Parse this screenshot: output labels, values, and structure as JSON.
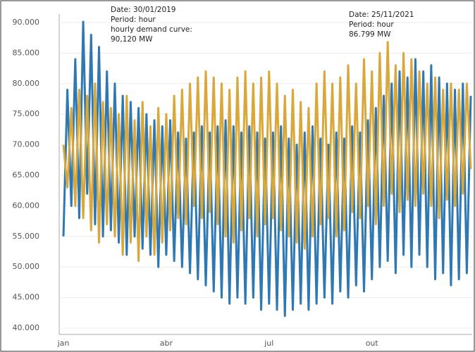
{
  "chart_data": {
    "type": "line",
    "annotations": [
      {
        "lines": [
          "Date: 30/01/2019",
          "Period: hour",
          "hourly demand curve:",
          "90,120 MW"
        ]
      },
      {
        "lines": [
          "Date: 25/11/2021",
          "Period: hour",
          "86.799 MW"
        ]
      }
    ],
    "categories": [
      "jan",
      null,
      null,
      null,
      null,
      null,
      null,
      null,
      null,
      null,
      null,
      null,
      null,
      null,
      null,
      null,
      null,
      null,
      null,
      null,
      null,
      null,
      null,
      null,
      null,
      null,
      "abr",
      null,
      null,
      null,
      null,
      null,
      null,
      null,
      null,
      null,
      null,
      null,
      null,
      null,
      null,
      null,
      null,
      null,
      null,
      null,
      null,
      null,
      null,
      null,
      null,
      null,
      "jul",
      null,
      null,
      null,
      null,
      null,
      null,
      null,
      null,
      null,
      null,
      null,
      null,
      null,
      null,
      null,
      null,
      null,
      null,
      null,
      null,
      null,
      null,
      null,
      null,
      null,
      "out",
      null,
      null,
      null,
      null,
      null,
      null,
      null,
      null,
      null,
      null,
      null,
      null,
      null,
      null,
      null,
      null,
      null,
      null,
      null,
      null,
      null,
      null,
      null,
      null,
      null
    ],
    "series": [
      {
        "color": "#2f78b1",
        "values": [
          55000,
          79000,
          60000,
          84000,
          58000,
          90120,
          62000,
          88000,
          57000,
          86000,
          55000,
          82000,
          56000,
          80000,
          54000,
          78000,
          52000,
          77000,
          55000,
          76000,
          53000,
          75000,
          52000,
          74000,
          50000,
          73000,
          52000,
          74000,
          51000,
          72000,
          50000,
          71000,
          49000,
          72000,
          48000,
          73000,
          47000,
          72000,
          46000,
          73000,
          45000,
          74000,
          44000,
          73000,
          45000,
          72000,
          44000,
          73000,
          45000,
          72000,
          43000,
          71000,
          44000,
          72000,
          43000,
          73000,
          42000,
          71000,
          43000,
          70000,
          44000,
          72000,
          43000,
          73000,
          44000,
          71000,
          45000,
          70000,
          44000,
          72000,
          46000,
          71000,
          45000,
          73000,
          47000,
          72000,
          46000,
          74000,
          48000,
          76000,
          50000,
          78000,
          51000,
          80000,
          49000,
          82000,
          52000,
          81000,
          50000,
          84000,
          52000,
          82000,
          50000,
          83000,
          48000,
          81000,
          49000,
          80000,
          47000,
          79000,
          48000,
          80000,
          49000,
          78000
        ]
      },
      {
        "color": "#d9a83c",
        "values": [
          70000,
          63000,
          76000,
          60000,
          79000,
          58000,
          78000,
          56000,
          80000,
          54000,
          77000,
          57000,
          76000,
          55000,
          75000,
          52000,
          78000,
          54000,
          74000,
          51000,
          77000,
          55000,
          73000,
          52000,
          76000,
          54000,
          75000,
          56000,
          78000,
          58000,
          79000,
          57000,
          80000,
          60000,
          81000,
          58000,
          82000,
          59000,
          81000,
          57000,
          80000,
          55000,
          79000,
          54000,
          81000,
          56000,
          82000,
          58000,
          80000,
          55000,
          81000,
          57000,
          82000,
          58000,
          80000,
          56000,
          78000,
          55000,
          79000,
          54000,
          77000,
          53000,
          76000,
          55000,
          80000,
          57000,
          82000,
          58000,
          80000,
          55000,
          81000,
          56000,
          83000,
          59000,
          80000,
          58000,
          84000,
          60000,
          82000,
          57000,
          85000,
          60000,
          86799,
          62000,
          83000,
          59000,
          85000,
          61000,
          84000,
          60000,
          82000,
          62000,
          80000,
          60000,
          81000,
          58000,
          79000,
          61000,
          80000,
          60000,
          79000,
          62000,
          80000,
          66000
        ]
      }
    ],
    "ylim": [
      40000,
      90000
    ],
    "yticks": [
      {
        "value": 40000,
        "label": "40.000"
      },
      {
        "value": 45000,
        "label": "45.000"
      },
      {
        "value": 50000,
        "label": "50.000"
      },
      {
        "value": 55000,
        "label": "55.000"
      },
      {
        "value": 60000,
        "label": "60.000"
      },
      {
        "value": 65000,
        "label": "65.000"
      },
      {
        "value": 70000,
        "label": "70.000"
      },
      {
        "value": 75000,
        "label": "75.000"
      },
      {
        "value": 80000,
        "label": "80.000"
      },
      {
        "value": 85000,
        "label": "85.000"
      },
      {
        "value": 90000,
        "label": "90.000"
      }
    ],
    "grid": true
  }
}
